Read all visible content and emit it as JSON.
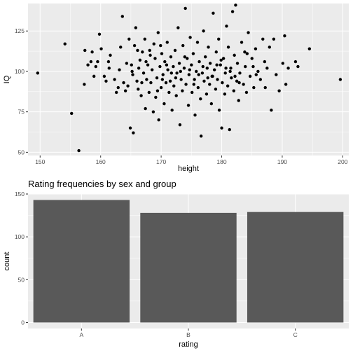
{
  "colors": {
    "panel_background": "#ebebeb",
    "major_grid": "#ffffff",
    "point": "#000000",
    "bar_fill": "#595959",
    "tick_text": "#4d4d4d"
  },
  "chart_data": [
    {
      "type": "scatter",
      "title": "",
      "xlabel": "height",
      "ylabel": "IQ",
      "xlim": [
        148,
        201
      ],
      "ylim": [
        48,
        142
      ],
      "x_ticks": [
        150,
        160,
        170,
        180,
        190,
        200
      ],
      "y_ticks": [
        50,
        75,
        100,
        125
      ],
      "grid": true,
      "points": [
        [
          149.6,
          99
        ],
        [
          154.1,
          117
        ],
        [
          155.2,
          74
        ],
        [
          156.4,
          51
        ],
        [
          157.3,
          92
        ],
        [
          157.4,
          113
        ],
        [
          157.9,
          104
        ],
        [
          158.4,
          106
        ],
        [
          158.6,
          112
        ],
        [
          158.9,
          97
        ],
        [
          159.2,
          103
        ],
        [
          159.5,
          106
        ],
        [
          159.8,
          123
        ],
        [
          160.1,
          114
        ],
        [
          160.6,
          97
        ],
        [
          160.9,
          94
        ],
        [
          161.3,
          106
        ],
        [
          161.6,
          110
        ],
        [
          161.4,
          102
        ],
        [
          162.3,
          95
        ],
        [
          162.6,
          87
        ],
        [
          162.9,
          90
        ],
        [
          163.1,
          101
        ],
        [
          163.3,
          115
        ],
        [
          163.6,
          134
        ],
        [
          163.8,
          93
        ],
        [
          164.1,
          88
        ],
        [
          164.3,
          105
        ],
        [
          164.5,
          91
        ],
        [
          164.7,
          120
        ],
        [
          164.9,
          65
        ],
        [
          165.1,
          104
        ],
        [
          165.3,
          98
        ],
        [
          165.4,
          62
        ],
        [
          165.6,
          116
        ],
        [
          165.8,
          127
        ],
        [
          166.0,
          94
        ],
        [
          166.2,
          89
        ],
        [
          166.3,
          102
        ],
        [
          166.5,
          107
        ],
        [
          166.7,
          85
        ],
        [
          166.9,
          112
        ],
        [
          167.1,
          99
        ],
        [
          167.3,
          120
        ],
        [
          167.4,
          77
        ],
        [
          167.6,
          95
        ],
        [
          167.8,
          104
        ],
        [
          168.0,
          87
        ],
        [
          168.1,
          113
        ],
        [
          168.3,
          93
        ],
        [
          168.5,
          101
        ],
        [
          168.7,
          75
        ],
        [
          168.8,
          117
        ],
        [
          169.0,
          108
        ],
        [
          169.1,
          84
        ],
        [
          169.3,
          96
        ],
        [
          169.5,
          124
        ],
        [
          169.6,
          70
        ],
        [
          169.8,
          103
        ],
        [
          170.0,
          90
        ],
        [
          170.1,
          111
        ],
        [
          170.3,
          98
        ],
        [
          170.5,
          80
        ],
        [
          170.6,
          106
        ],
        [
          170.8,
          93
        ],
        [
          171.0,
          118
        ],
        [
          171.1,
          101
        ],
        [
          171.3,
          87
        ],
        [
          171.5,
          94
        ],
        [
          171.6,
          109
        ],
        [
          171.8,
          76
        ],
        [
          172.0,
          103
        ],
        [
          172.1,
          91
        ],
        [
          172.3,
          113
        ],
        [
          172.5,
          85
        ],
        [
          172.6,
          99
        ],
        [
          172.8,
          127
        ],
        [
          173.0,
          105
        ],
        [
          173.1,
          67
        ],
        [
          173.3,
          95
        ],
        [
          173.5,
          88
        ],
        [
          173.6,
          116
        ],
        [
          173.8,
          102
        ],
        [
          174.0,
          139
        ],
        [
          174.1,
          92
        ],
        [
          174.3,
          108
        ],
        [
          174.5,
          79
        ],
        [
          174.6,
          98
        ],
        [
          174.8,
          121
        ],
        [
          175.0,
          104
        ],
        [
          175.1,
          87
        ],
        [
          175.3,
          111
        ],
        [
          175.5,
          95
        ],
        [
          175.6,
          73
        ],
        [
          175.8,
          100
        ],
        [
          176.0,
          118
        ],
        [
          176.1,
          90
        ],
        [
          176.3,
          106
        ],
        [
          176.5,
          83
        ],
        [
          176.6,
          60
        ],
        [
          176.8,
          99
        ],
        [
          177.0,
          125
        ],
        [
          177.1,
          94
        ],
        [
          177.3,
          109
        ],
        [
          177.5,
          86
        ],
        [
          177.6,
          102
        ],
        [
          177.8,
          115
        ],
        [
          178.0,
          92
        ],
        [
          178.1,
          105
        ],
        [
          178.3,
          80
        ],
        [
          178.5,
          97
        ],
        [
          178.6,
          136
        ],
        [
          178.8,
          101
        ],
        [
          179.0,
          89
        ],
        [
          179.1,
          112
        ],
        [
          179.3,
          95
        ],
        [
          179.5,
          120
        ],
        [
          179.6,
          76
        ],
        [
          179.8,
          104
        ],
        [
          180.0,
          65
        ],
        [
          180.1,
          93
        ],
        [
          180.3,
          108
        ],
        [
          180.5,
          86
        ],
        [
          180.6,
          99
        ],
        [
          180.8,
          128
        ],
        [
          181.0,
          91
        ],
        [
          181.1,
          115
        ],
        [
          181.3,
          64
        ],
        [
          181.5,
          102
        ],
        [
          181.6,
          96
        ],
        [
          181.8,
          137
        ],
        [
          182.0,
          88
        ],
        [
          182.1,
          110
        ],
        [
          182.3,
          141
        ],
        [
          182.5,
          94
        ],
        [
          182.6,
          105
        ],
        [
          182.8,
          82
        ],
        [
          183.0,
          99
        ],
        [
          183.3,
          118
        ],
        [
          183.6,
          92
        ],
        [
          183.9,
          103
        ],
        [
          184.1,
          87
        ],
        [
          184.4,
          124
        ],
        [
          184.7,
          97
        ],
        [
          185.0,
          108
        ],
        [
          185.3,
          90
        ],
        [
          185.6,
          114
        ],
        [
          186.0,
          100
        ],
        [
          186.4,
          95
        ],
        [
          186.8,
          120
        ],
        [
          187.1,
          106
        ],
        [
          187.5,
          102
        ],
        [
          187.9,
          115
        ],
        [
          188.2,
          76
        ],
        [
          188.6,
          120
        ],
        [
          189.0,
          98
        ],
        [
          189.5,
          88
        ],
        [
          190.1,
          105
        ],
        [
          190.4,
          122
        ],
        [
          190.6,
          92
        ],
        [
          191.0,
          102
        ],
        [
          192.2,
          106
        ],
        [
          192.6,
          103
        ],
        [
          194.5,
          114
        ],
        [
          199.6,
          95
        ],
        [
          165.2,
          100
        ],
        [
          166.8,
          93
        ],
        [
          168.2,
          110
        ],
        [
          169.4,
          88
        ],
        [
          170.9,
          104
        ],
        [
          172.4,
          96
        ],
        [
          173.9,
          109
        ],
        [
          175.4,
          92
        ],
        [
          176.9,
          103
        ],
        [
          178.4,
          97
        ],
        [
          179.9,
          107
        ],
        [
          181.4,
          100
        ],
        [
          182.9,
          93
        ],
        [
          184.2,
          111
        ],
        [
          185.7,
          98
        ],
        [
          187.2,
          90
        ],
        [
          171.7,
          99
        ],
        [
          174.7,
          101
        ],
        [
          177.7,
          96
        ],
        [
          180.7,
          102
        ],
        [
          167.5,
          106
        ],
        [
          170.2,
          95
        ],
        [
          173.2,
          100
        ],
        [
          176.2,
          98
        ],
        [
          179.2,
          104
        ],
        [
          182.2,
          97
        ],
        [
          185.2,
          103
        ],
        [
          183.8,
          112
        ],
        [
          166.1,
          113
        ],
        [
          169.9,
          116
        ]
      ]
    },
    {
      "type": "bar",
      "title": "Rating frequencies by sex and group",
      "xlabel": "rating",
      "ylabel": "count",
      "categories": [
        "A",
        "B",
        "C"
      ],
      "values": [
        143,
        128,
        129
      ],
      "ylim": [
        -7,
        150
      ],
      "y_ticks": [
        0,
        50,
        100,
        150
      ],
      "grid": true
    }
  ]
}
